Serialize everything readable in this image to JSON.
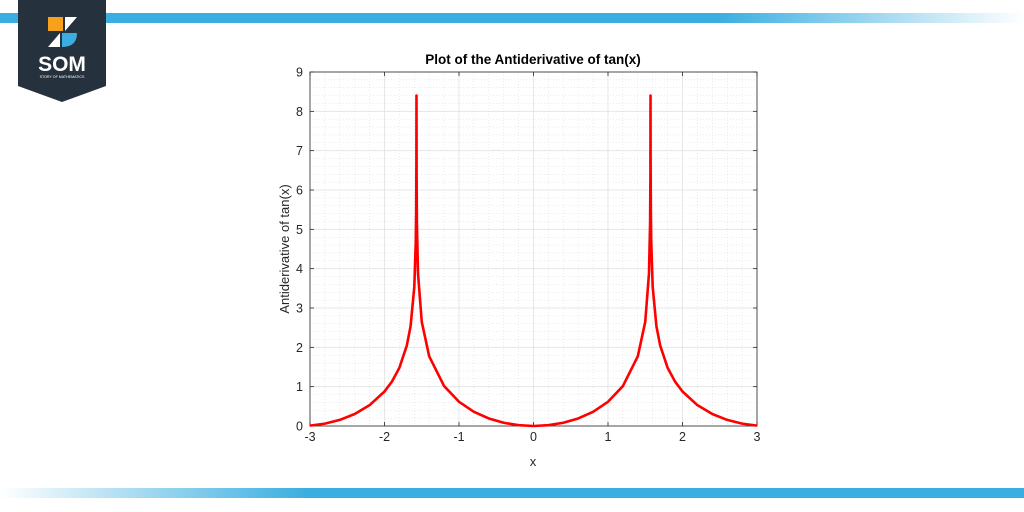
{
  "logo": {
    "text": "SOM",
    "subtext": "STORY OF MATHEMATICS",
    "colors": {
      "navy": "#25313c",
      "orange": "#f5a11c",
      "blue": "#3aaee0"
    }
  },
  "chart_data": {
    "type": "line",
    "title": "Plot of the Antiderivative of tan(x)",
    "xlabel": "x",
    "ylabel": "Antiderivative of tan(x)",
    "xlim": [
      -3,
      3
    ],
    "ylim": [
      0,
      9
    ],
    "xticks": [
      "-3",
      "-2",
      "-1",
      "0",
      "1",
      "2",
      "3"
    ],
    "yticks": [
      "0",
      "1",
      "2",
      "3",
      "4",
      "5",
      "6",
      "7",
      "8",
      "9"
    ],
    "grid": "major and minor",
    "line_color": "#ff0000",
    "series": [
      {
        "x": [
          -3,
          -2.8,
          -2.6,
          -2.4,
          -2.2,
          -2.0,
          -1.9,
          -1.8,
          -1.7,
          -1.65,
          -1.6,
          -1.58,
          -1.575,
          -1.572,
          -1.5708,
          -1.5705,
          -1.569,
          -1.565,
          -1.55,
          -1.5,
          -1.4,
          -1.2,
          -1.0,
          -0.8,
          -0.6,
          -0.4,
          -0.2,
          0,
          0.2,
          0.4,
          0.6,
          0.8,
          1.0,
          1.2,
          1.4,
          1.5,
          1.55,
          1.565,
          1.569,
          1.5705,
          1.5708,
          1.572,
          1.575,
          1.58,
          1.6,
          1.65,
          1.7,
          1.8,
          1.9,
          2.0,
          2.2,
          2.4,
          2.6,
          2.8,
          3
        ],
        "y": [
          0.01,
          0.06,
          0.155,
          0.305,
          0.53,
          0.877,
          1.129,
          1.482,
          2.049,
          2.537,
          3.534,
          4.689,
          5.473,
          6.725,
          8.4,
          8.125,
          6.322,
          5.15,
          3.873,
          2.649,
          1.772,
          1.015,
          0.616,
          0.361,
          0.192,
          0.082,
          0.02,
          0,
          0.02,
          0.082,
          0.192,
          0.361,
          0.616,
          1.015,
          1.772,
          2.649,
          3.873,
          5.15,
          6.322,
          8.125,
          8.4,
          6.725,
          5.473,
          4.689,
          3.534,
          2.537,
          2.049,
          1.482,
          1.129,
          0.877,
          0.53,
          0.305,
          0.155,
          0.06,
          0.01
        ]
      }
    ]
  }
}
